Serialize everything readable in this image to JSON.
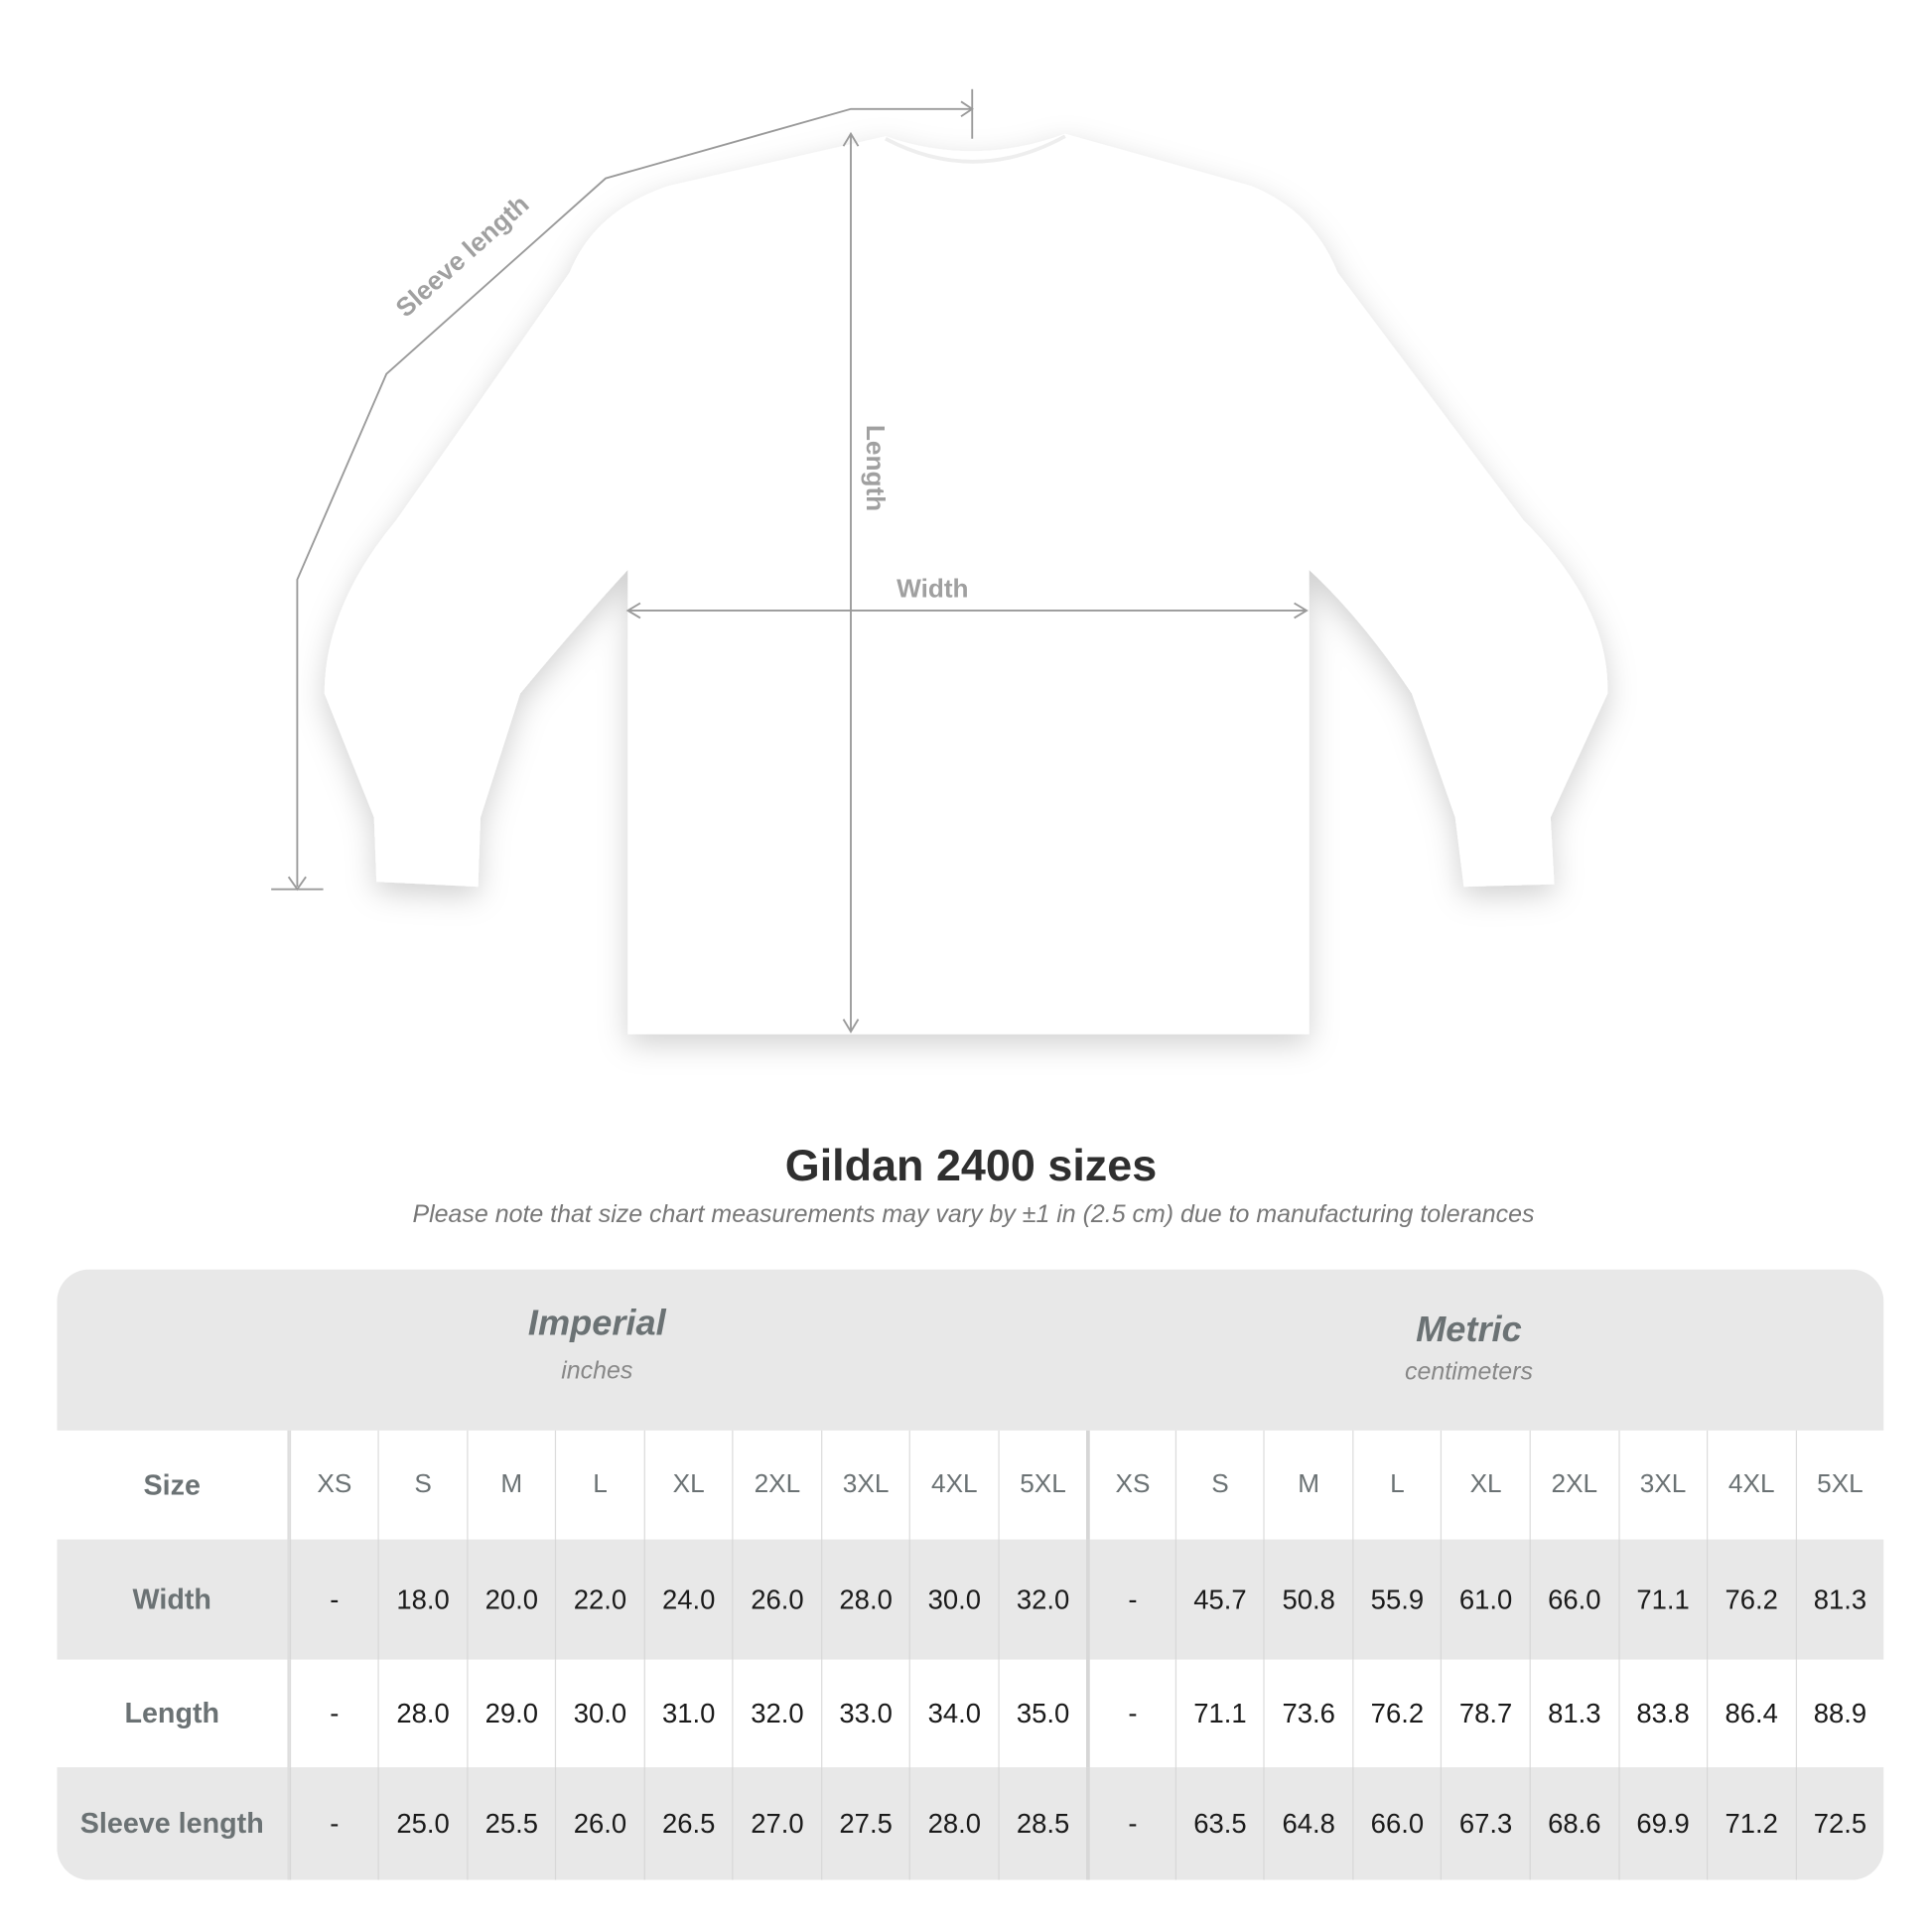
{
  "diagram": {
    "sleeve_label": "Sleeve length",
    "length_label": "Length",
    "width_label": "Width"
  },
  "title": "Gildan 2400 sizes",
  "subtitle": "Please note that size chart measurements may vary by ±1 in (2.5 cm) due to manufacturing tolerances",
  "table": {
    "imperial": {
      "name": "Imperial",
      "unit": "inches"
    },
    "metric": {
      "name": "Metric",
      "unit": "centimeters"
    },
    "size_label": "Size",
    "sizes": [
      "XS",
      "S",
      "M",
      "L",
      "XL",
      "2XL",
      "3XL",
      "4XL",
      "5XL",
      "XS",
      "S",
      "M",
      "L",
      "XL",
      "2XL",
      "3XL",
      "4XL",
      "5XL"
    ],
    "rows": [
      {
        "label": "Width",
        "values": [
          "-",
          "18.0",
          "20.0",
          "22.0",
          "24.0",
          "26.0",
          "28.0",
          "30.0",
          "32.0",
          "-",
          "45.7",
          "50.8",
          "55.9",
          "61.0",
          "66.0",
          "71.1",
          "76.2",
          "81.3"
        ]
      },
      {
        "label": "Length",
        "values": [
          "-",
          "28.0",
          "29.0",
          "30.0",
          "31.0",
          "32.0",
          "33.0",
          "34.0",
          "35.0",
          "-",
          "71.1",
          "73.6",
          "76.2",
          "78.7",
          "81.3",
          "83.8",
          "86.4",
          "88.9"
        ]
      },
      {
        "label": "Sleeve length",
        "values": [
          "-",
          "25.0",
          "25.5",
          "26.0",
          "26.5",
          "27.0",
          "27.5",
          "28.0",
          "28.5",
          "-",
          "63.5",
          "64.8",
          "66.0",
          "67.3",
          "68.6",
          "69.9",
          "71.2",
          "72.5"
        ]
      }
    ]
  }
}
